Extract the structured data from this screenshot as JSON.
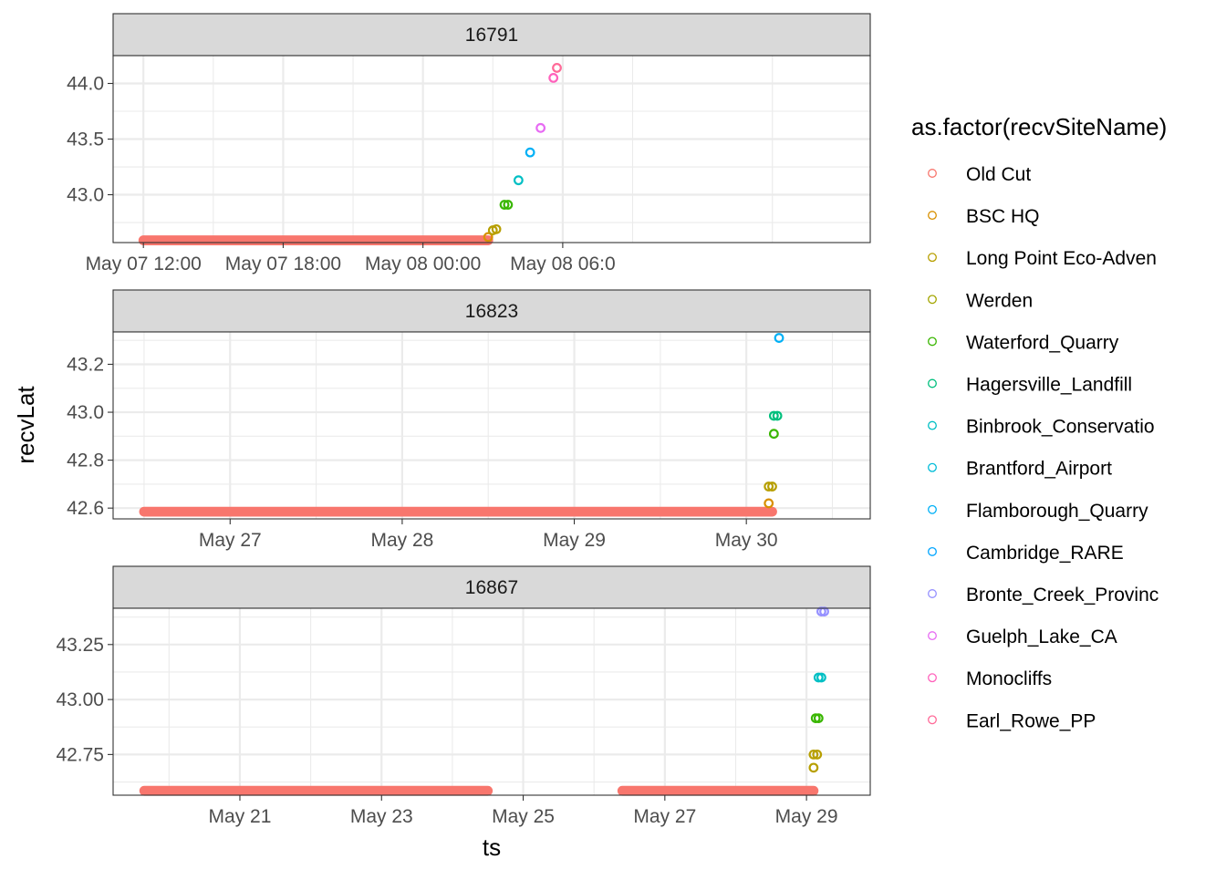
{
  "chart_data": {
    "type": "scatter",
    "xlabel": "ts",
    "ylabel": "recvLat",
    "legend": {
      "title": "as.factor(recvSiteName)",
      "position": "right",
      "entries": [
        {
          "name": "Old Cut",
          "color": "#F8766D"
        },
        {
          "name": "BSC HQ",
          "color": "#D89000"
        },
        {
          "name": "Long Point Eco-Adven",
          "color": "#B79F00"
        },
        {
          "name": "Werden",
          "color": "#A3A500"
        },
        {
          "name": "Waterford_Quarry",
          "color": "#39B600"
        },
        {
          "name": "Hagersville_Landfill",
          "color": "#00BF7D"
        },
        {
          "name": "Binbrook_Conservatio",
          "color": "#00BFC4"
        },
        {
          "name": "Brantford_Airport",
          "color": "#00BCD8"
        },
        {
          "name": "Flamborough_Quarry",
          "color": "#00B0F6"
        },
        {
          "name": "Cambridge_RARE",
          "color": "#00A5FF"
        },
        {
          "name": "Bronte_Creek_Provinc",
          "color": "#9590FF"
        },
        {
          "name": "Guelph_Lake_CA",
          "color": "#E76BF3"
        },
        {
          "name": "Monocliffs",
          "color": "#FF62BC"
        },
        {
          "name": "Earl_Rowe_PP",
          "color": "#FF6A98"
        }
      ]
    },
    "facets": [
      {
        "strip": "16791",
        "x_unit": "hours since May 07 12:00",
        "xlim": [
          -1.3,
          31.2
        ],
        "ylim": [
          42.57,
          44.25
        ],
        "x_ticks": [
          {
            "value": 0,
            "label": "May 07 12:00"
          },
          {
            "value": 6,
            "label": "May 07 18:00"
          },
          {
            "value": 12,
            "label": "May 08 00:00"
          },
          {
            "value": 18,
            "label": "May 08 06:0"
          }
        ],
        "y_ticks": [
          {
            "value": 43.0,
            "label": "43.0"
          },
          {
            "value": 43.5,
            "label": "43.5"
          },
          {
            "value": 44.0,
            "label": "44.0"
          }
        ],
        "segments": [
          {
            "site": "Old Cut",
            "x_start": 0,
            "x_end": 14.8,
            "y": 42.59
          }
        ],
        "points": [
          {
            "site": "BSC HQ",
            "x": 14.8,
            "y": 42.62
          },
          {
            "site": "Long Point Eco-Adven",
            "x": 15.0,
            "y": 42.68
          },
          {
            "site": "Long Point Eco-Adven",
            "x": 15.15,
            "y": 42.69
          },
          {
            "site": "Waterford_Quarry",
            "x": 15.5,
            "y": 42.91
          },
          {
            "site": "Waterford_Quarry",
            "x": 15.65,
            "y": 42.91
          },
          {
            "site": "Binbrook_Conservatio",
            "x": 16.1,
            "y": 43.13
          },
          {
            "site": "Flamborough_Quarry",
            "x": 16.6,
            "y": 43.38
          },
          {
            "site": "Guelph_Lake_CA",
            "x": 17.05,
            "y": 43.6
          },
          {
            "site": "Monocliffs",
            "x": 17.6,
            "y": 44.05
          },
          {
            "site": "Earl_Rowe_PP",
            "x": 17.75,
            "y": 44.14
          }
        ]
      },
      {
        "strip": "16823",
        "x_unit": "days since May 27",
        "xlim": [
          -0.68,
          3.72
        ],
        "ylim": [
          42.555,
          43.335
        ],
        "x_ticks": [
          {
            "value": 0,
            "label": "May 27"
          },
          {
            "value": 1,
            "label": "May 28"
          },
          {
            "value": 2,
            "label": "May 29"
          },
          {
            "value": 3,
            "label": "May 30"
          }
        ],
        "y_ticks": [
          {
            "value": 42.6,
            "label": "42.6"
          },
          {
            "value": 42.8,
            "label": "42.8"
          },
          {
            "value": 43.0,
            "label": "43.0"
          },
          {
            "value": 43.2,
            "label": "43.2"
          }
        ],
        "segments": [
          {
            "site": "Old Cut",
            "x_start": -0.5,
            "x_end": 3.15,
            "y": 42.585
          }
        ],
        "points": [
          {
            "site": "BSC HQ",
            "x": 3.13,
            "y": 42.62
          },
          {
            "site": "Long Point Eco-Adven",
            "x": 3.13,
            "y": 42.69
          },
          {
            "site": "Long Point Eco-Adven",
            "x": 3.15,
            "y": 42.69
          },
          {
            "site": "Waterford_Quarry",
            "x": 3.16,
            "y": 42.91
          },
          {
            "site": "Hagersville_Landfill",
            "x": 3.16,
            "y": 42.985
          },
          {
            "site": "Hagersville_Landfill",
            "x": 3.18,
            "y": 42.985
          },
          {
            "site": "Flamborough_Quarry",
            "x": 3.19,
            "y": 43.31
          }
        ]
      },
      {
        "strip": "16867",
        "x_unit": "days since May 21",
        "xlim": [
          -1.79,
          8.9
        ],
        "ylim": [
          42.565,
          43.415
        ],
        "x_ticks": [
          {
            "value": 0,
            "label": "May 21"
          },
          {
            "value": 2,
            "label": "May 23"
          },
          {
            "value": 4,
            "label": "May 25"
          },
          {
            "value": 6,
            "label": "May 27"
          },
          {
            "value": 8,
            "label": "May 29"
          }
        ],
        "y_ticks": [
          {
            "value": 42.75,
            "label": "42.75"
          },
          {
            "value": 43.0,
            "label": "43.00"
          },
          {
            "value": 43.25,
            "label": "43.25"
          }
        ],
        "segments": [
          {
            "site": "Old Cut",
            "x_start": -1.35,
            "x_end": 3.5,
            "y": 42.585
          },
          {
            "site": "Old Cut",
            "x_start": 5.4,
            "x_end": 8.1,
            "y": 42.585
          }
        ],
        "points": [
          {
            "site": "Long Point Eco-Adven",
            "x": 8.1,
            "y": 42.69
          },
          {
            "site": "Long Point Eco-Adven",
            "x": 8.1,
            "y": 42.75
          },
          {
            "site": "Long Point Eco-Adven",
            "x": 8.15,
            "y": 42.75
          },
          {
            "site": "Waterford_Quarry",
            "x": 8.13,
            "y": 42.915
          },
          {
            "site": "Waterford_Quarry",
            "x": 8.17,
            "y": 42.915
          },
          {
            "site": "Binbrook_Conservatio",
            "x": 8.17,
            "y": 43.1
          },
          {
            "site": "Binbrook_Conservatio",
            "x": 8.21,
            "y": 43.1
          },
          {
            "site": "Bronte_Creek_Provinc",
            "x": 8.21,
            "y": 43.4
          },
          {
            "site": "Bronte_Creek_Provinc",
            "x": 8.25,
            "y": 43.4
          }
        ]
      }
    ]
  }
}
